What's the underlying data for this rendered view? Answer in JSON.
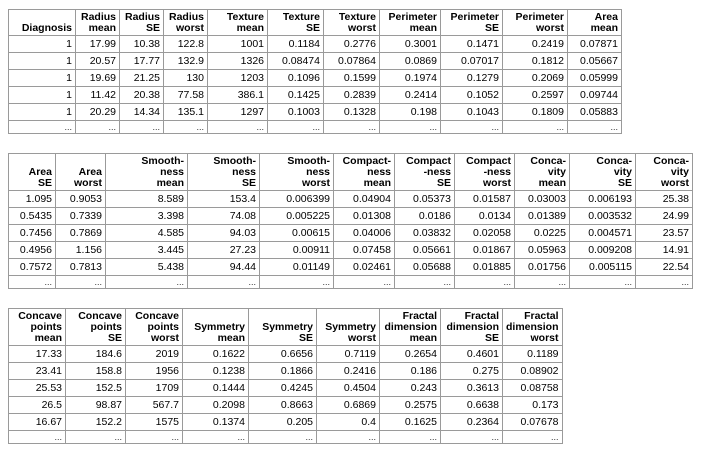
{
  "table1": {
    "headers": [
      [
        "Diagnosis"
      ],
      [
        "Radius",
        "mean"
      ],
      [
        "Radius",
        "SE"
      ],
      [
        "Radius",
        "worst"
      ],
      [
        "Texture",
        "mean"
      ],
      [
        "Texture",
        "SE"
      ],
      [
        "Texture",
        "worst"
      ],
      [
        "Perimeter",
        "mean"
      ],
      [
        "Perimeter",
        "SE"
      ],
      [
        "Perimeter",
        "worst"
      ],
      [
        "Area",
        "mean"
      ]
    ],
    "rows": [
      [
        "1",
        "17.99",
        "10.38",
        "122.8",
        "1001",
        "0.1184",
        "0.2776",
        "0.3001",
        "0.1471",
        "0.2419",
        "0.07871"
      ],
      [
        "1",
        "20.57",
        "17.77",
        "132.9",
        "1326",
        "0.08474",
        "0.07864",
        "0.0869",
        "0.07017",
        "0.1812",
        "0.05667"
      ],
      [
        "1",
        "19.69",
        "21.25",
        "130",
        "1203",
        "0.1096",
        "0.1599",
        "0.1974",
        "0.1279",
        "0.2069",
        "0.05999"
      ],
      [
        "1",
        "11.42",
        "20.38",
        "77.58",
        "386.1",
        "0.1425",
        "0.2839",
        "0.2414",
        "0.1052",
        "0.2597",
        "0.09744"
      ],
      [
        "1",
        "20.29",
        "14.34",
        "135.1",
        "1297",
        "0.1003",
        "0.1328",
        "0.198",
        "0.1043",
        "0.1809",
        "0.05883"
      ]
    ],
    "ellipsis": "..."
  },
  "table2": {
    "headers": [
      [
        "Area",
        "SE"
      ],
      [
        "Area",
        "worst"
      ],
      [
        "Smooth-",
        "ness",
        "mean"
      ],
      [
        "Smooth-",
        "ness",
        "SE"
      ],
      [
        "Smooth-",
        "ness",
        "worst"
      ],
      [
        "Compact-",
        "ness",
        "mean"
      ],
      [
        "Compact",
        "-ness",
        "SE"
      ],
      [
        "Compact",
        "-ness",
        "worst"
      ],
      [
        "Conca-",
        "vity",
        "mean"
      ],
      [
        "Conca-",
        "vity",
        "SE"
      ],
      [
        "Conca-",
        "vity",
        "worst"
      ]
    ],
    "rows": [
      [
        "1.095",
        "0.9053",
        "8.589",
        "153.4",
        "0.006399",
        "0.04904",
        "0.05373",
        "0.01587",
        "0.03003",
        "0.006193",
        "25.38"
      ],
      [
        "0.5435",
        "0.7339",
        "3.398",
        "74.08",
        "0.005225",
        "0.01308",
        "0.0186",
        "0.0134",
        "0.01389",
        "0.003532",
        "24.99"
      ],
      [
        "0.7456",
        "0.7869",
        "4.585",
        "94.03",
        "0.00615",
        "0.04006",
        "0.03832",
        "0.02058",
        "0.0225",
        "0.004571",
        "23.57"
      ],
      [
        "0.4956",
        "1.156",
        "3.445",
        "27.23",
        "0.00911",
        "0.07458",
        "0.05661",
        "0.01867",
        "0.05963",
        "0.009208",
        "14.91"
      ],
      [
        "0.7572",
        "0.7813",
        "5.438",
        "94.44",
        "0.01149",
        "0.02461",
        "0.05688",
        "0.01885",
        "0.01756",
        "0.005115",
        "22.54"
      ]
    ],
    "ellipsis": "..."
  },
  "table3": {
    "headers": [
      [
        "Concave",
        "points",
        "mean"
      ],
      [
        "Concave",
        "points",
        "SE"
      ],
      [
        "Concave",
        "points",
        "worst"
      ],
      [
        "Symmetry",
        "mean"
      ],
      [
        "Symmetry",
        "SE"
      ],
      [
        "Symmetry",
        "worst"
      ],
      [
        "Fractal",
        "dimension",
        "mean"
      ],
      [
        "Fractal",
        "dimension",
        "SE"
      ],
      [
        "Fractal",
        "dimension",
        "worst"
      ]
    ],
    "rows": [
      [
        "17.33",
        "184.6",
        "2019",
        "0.1622",
        "0.6656",
        "0.7119",
        "0.2654",
        "0.4601",
        "0.1189"
      ],
      [
        "23.41",
        "158.8",
        "1956",
        "0.1238",
        "0.1866",
        "0.2416",
        "0.186",
        "0.275",
        "0.08902"
      ],
      [
        "25.53",
        "152.5",
        "1709",
        "0.1444",
        "0.4245",
        "0.4504",
        "0.243",
        "0.3613",
        "0.08758"
      ],
      [
        "26.5",
        "98.87",
        "567.7",
        "0.2098",
        "0.8663",
        "0.6869",
        "0.2575",
        "0.6638",
        "0.173"
      ],
      [
        "16.67",
        "152.2",
        "1575",
        "0.1374",
        "0.205",
        "0.4",
        "0.1625",
        "0.2364",
        "0.07678"
      ]
    ],
    "ellipsis": "..."
  }
}
